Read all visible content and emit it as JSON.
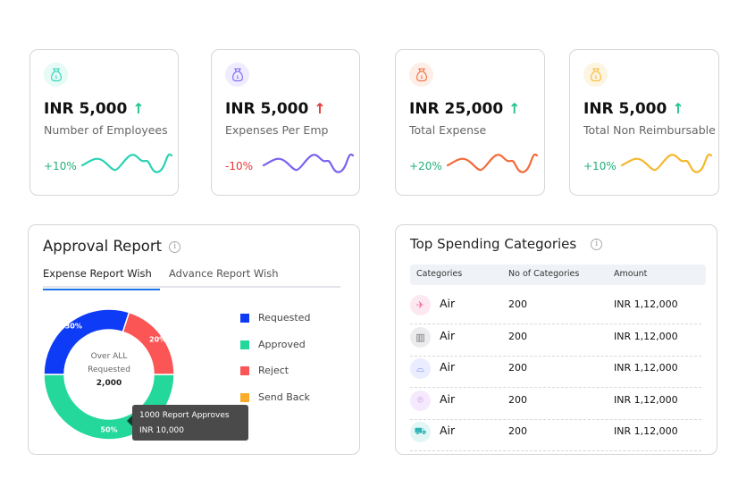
{
  "kpis": [
    {
      "value": "INR 5,000",
      "label": "Number of Employees",
      "change": "+10%",
      "trend": "up",
      "arrow_color": "#22c38e",
      "change_color": "#22b07a",
      "line_color": "#2bd2b4",
      "icon_bg": "#e6faf6",
      "icon": "money-bag-icon"
    },
    {
      "value": "INR 5,000",
      "label": "Expenses Per Emp",
      "change": "-10%",
      "trend": "up",
      "arrow_color": "#e53935",
      "change_color": "#e53935",
      "line_color": "#7b61f0",
      "icon_bg": "#efecff",
      "icon": "money-bag-icon"
    },
    {
      "value": "INR 25,000",
      "label": "Total Expense",
      "change": "+20%",
      "trend": "up",
      "arrow_color": "#22c38e",
      "change_color": "#22b07a",
      "line_color": "#f26b3a",
      "icon_bg": "#fdeee8",
      "icon": "money-bag-icon"
    },
    {
      "value": "INR 5,000",
      "label": "Total Non Reimbursable",
      "change": "+10%",
      "trend": "up",
      "arrow_color": "#22c38e",
      "change_color": "#22b07a",
      "line_color": "#f5b82e",
      "icon_bg": "#fdf5e1",
      "icon": "money-bag-icon"
    }
  ],
  "approval": {
    "title": "Approval Report",
    "tabs": [
      "Expense Report Wish",
      "Advance Report Wish"
    ],
    "active_tab": "Expense Report Wish",
    "center": {
      "line1": "Over ALL",
      "line2": "Requested",
      "value": "2,000"
    },
    "tooltip": {
      "line1": "1000 Report Approves",
      "line2": "INR 10,000"
    },
    "legend": [
      {
        "label": "Requested",
        "color": "#0e3bf5"
      },
      {
        "label": "Approved",
        "color": "#24d89c"
      },
      {
        "label": "Reject",
        "color": "#fb5555"
      },
      {
        "label": "Send Back",
        "color": "#fbac2b"
      }
    ]
  },
  "chart_data": {
    "type": "pie",
    "categories": [
      "Approved",
      "Requested",
      "Reject"
    ],
    "values": [
      50,
      30,
      20
    ],
    "labels": [
      "50%",
      "30%",
      "20%"
    ],
    "colors": [
      "#24d89c",
      "#0e3bf5",
      "#fb5555"
    ]
  },
  "spending": {
    "title": "Top Spending Categories",
    "columns": [
      "Categories",
      "No of Categories",
      "Amount"
    ],
    "rows": [
      {
        "name": "Air",
        "count": "200",
        "amount": "INR 1,12,000",
        "icon": "airplane-icon",
        "bg": "#fde8f1",
        "color": "#f06fa6"
      },
      {
        "name": "Air",
        "count": "200",
        "amount": "INR 1,12,000",
        "icon": "building-icon",
        "bg": "#ececef",
        "color": "#777"
      },
      {
        "name": "Air",
        "count": "200",
        "amount": "INR 1,12,000",
        "icon": "service-bell-icon",
        "bg": "#e9edff",
        "color": "#6d86f5"
      },
      {
        "name": "Air",
        "count": "200",
        "amount": "INR 1,12,000",
        "icon": "location-pin-icon",
        "bg": "#f5eafd",
        "color": "#c17ae8"
      },
      {
        "name": "Air",
        "count": "200",
        "amount": "INR 1,12,000",
        "icon": "taxi-icon",
        "bg": "#e2f6f6",
        "color": "#2bb5b5"
      }
    ]
  }
}
